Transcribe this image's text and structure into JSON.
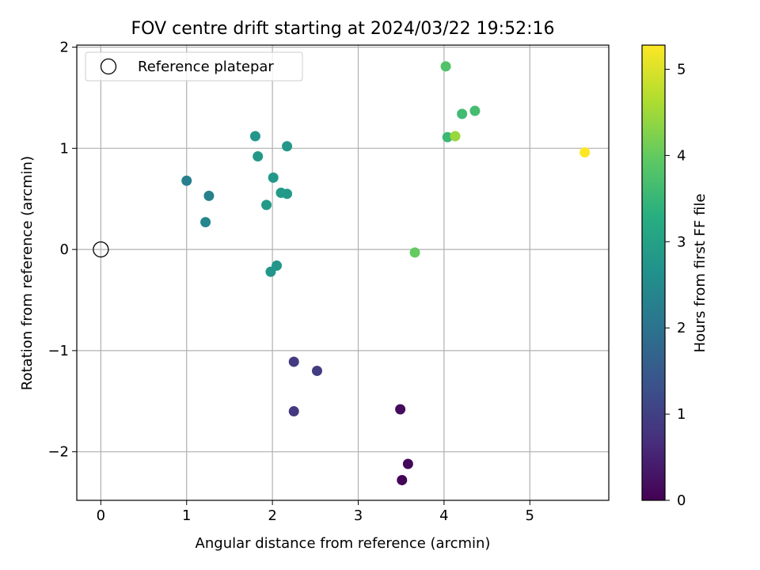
{
  "chart_data": {
    "type": "scatter",
    "title": "FOV centre drift starting at 2024/03/22 19:52:16",
    "xlabel": "Angular distance from reference (arcmin)",
    "ylabel": "Rotation from reference (arcmin)",
    "xlim": [
      -0.28,
      5.92
    ],
    "ylim": [
      -2.48,
      2.02
    ],
    "xticks": [
      0,
      1,
      2,
      3,
      4,
      5
    ],
    "xtick_labels": [
      "0",
      "1",
      "2",
      "3",
      "4",
      "5"
    ],
    "yticks": [
      -2,
      -1,
      0,
      1,
      2
    ],
    "ytick_labels": [
      "−2",
      "−1",
      "0",
      "1",
      "2"
    ],
    "grid": true,
    "legend": {
      "placement": "upper-left",
      "entries": [
        {
          "label": "Reference platepar",
          "marker": "open-circle",
          "x": 0,
          "y": 0
        }
      ]
    },
    "colorbar": {
      "label": "Hours from first FF file",
      "range": [
        0,
        5.28
      ],
      "ticks": [
        0,
        1,
        2,
        3,
        4,
        5
      ],
      "tick_labels": [
        "0",
        "1",
        "2",
        "3",
        "4",
        "5"
      ],
      "colormap": "viridis"
    },
    "points": [
      {
        "x": 3.51,
        "y": -2.28,
        "c": 0.05
      },
      {
        "x": 3.58,
        "y": -2.12,
        "c": 0.1
      },
      {
        "x": 3.49,
        "y": -1.58,
        "c": 0.15
      },
      {
        "x": 2.25,
        "y": -1.11,
        "c": 0.9
      },
      {
        "x": 2.52,
        "y": -1.2,
        "c": 0.95
      },
      {
        "x": 2.25,
        "y": -1.6,
        "c": 0.85
      },
      {
        "x": 1.0,
        "y": 0.68,
        "c": 2.25
      },
      {
        "x": 1.26,
        "y": 0.53,
        "c": 2.3
      },
      {
        "x": 1.22,
        "y": 0.27,
        "c": 2.4
      },
      {
        "x": 1.8,
        "y": 1.12,
        "c": 2.75
      },
      {
        "x": 1.83,
        "y": 0.92,
        "c": 2.8
      },
      {
        "x": 2.17,
        "y": 1.02,
        "c": 2.8
      },
      {
        "x": 2.01,
        "y": 0.71,
        "c": 2.8
      },
      {
        "x": 2.1,
        "y": 0.56,
        "c": 2.85
      },
      {
        "x": 2.17,
        "y": 0.55,
        "c": 2.85
      },
      {
        "x": 1.93,
        "y": 0.44,
        "c": 2.85
      },
      {
        "x": 2.05,
        "y": -0.16,
        "c": 2.75
      },
      {
        "x": 1.98,
        "y": -0.22,
        "c": 2.75
      },
      {
        "x": 4.02,
        "y": 1.81,
        "c": 3.8
      },
      {
        "x": 4.04,
        "y": 1.11,
        "c": 3.55
      },
      {
        "x": 4.21,
        "y": 1.34,
        "c": 3.6
      },
      {
        "x": 4.36,
        "y": 1.37,
        "c": 3.65
      },
      {
        "x": 4.13,
        "y": 1.12,
        "c": 4.45
      },
      {
        "x": 3.66,
        "y": -0.03,
        "c": 4.0
      },
      {
        "x": 5.64,
        "y": 0.96,
        "c": 5.28
      }
    ]
  }
}
